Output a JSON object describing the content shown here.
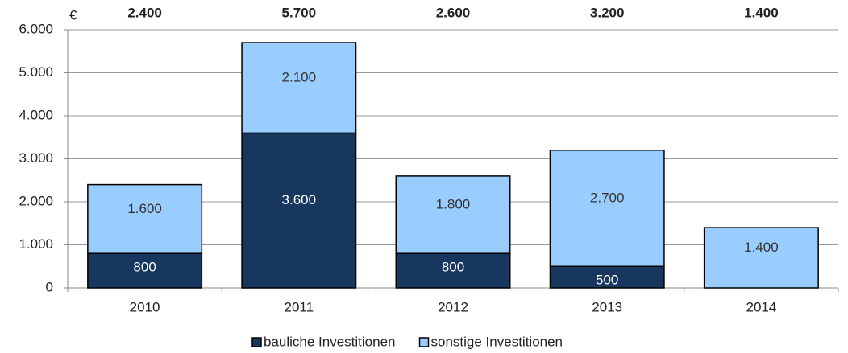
{
  "chart_data": {
    "type": "stacked-bar",
    "y_unit": "€",
    "categories": [
      "2010",
      "2011",
      "2012",
      "2013",
      "2014"
    ],
    "series": [
      {
        "name": "bauliche Investitionen",
        "color": "#17375e",
        "label_color": "#ffffff",
        "values": [
          800,
          3600,
          800,
          500,
          0
        ],
        "value_labels": [
          "800",
          "3.600",
          "800",
          "500",
          null
        ]
      },
      {
        "name": "sonstige Investitionen",
        "color": "#99ccff",
        "label_color": "#333333",
        "values": [
          1600,
          2100,
          1800,
          2700,
          1400
        ],
        "value_labels": [
          "1.600",
          "2.100",
          "1.800",
          "2.700",
          "1.400"
        ]
      }
    ],
    "totals": {
      "values": [
        2400,
        5700,
        2600,
        3200,
        1400
      ],
      "value_labels": [
        "2.400",
        "5.700",
        "2.600",
        "3.200",
        "1.400"
      ]
    },
    "ylim": [
      0,
      6000
    ],
    "yticks": [
      0,
      {
        "value": 1000,
        "label": "1.000"
      },
      {
        "value": 2000,
        "label": "2.000"
      },
      {
        "value": 3000,
        "label": "3.000"
      },
      {
        "value": 4000,
        "label": "4.000"
      },
      {
        "value": 5000,
        "label": "5.000"
      },
      {
        "value": 6000,
        "label": "6.000"
      }
    ],
    "grid": true,
    "legend": "bottom"
  }
}
